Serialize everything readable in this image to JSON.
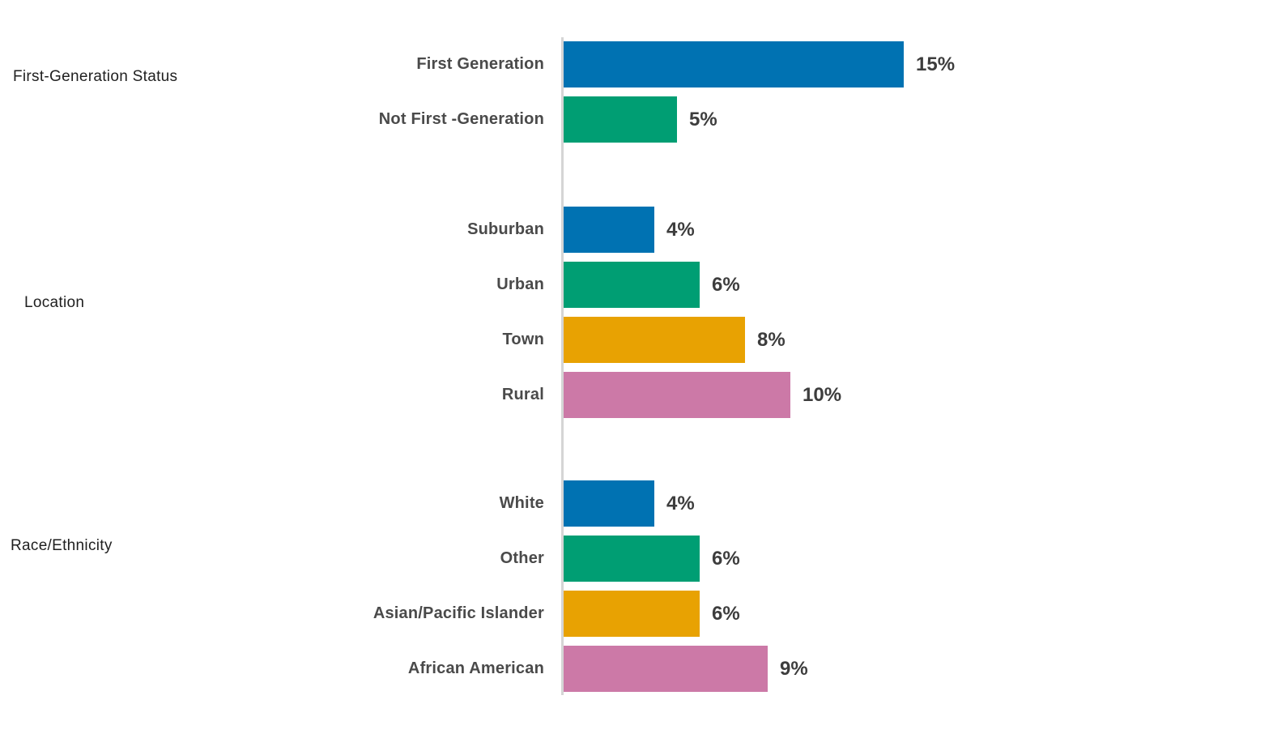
{
  "chart_data": {
    "type": "bar",
    "orientation": "horizontal",
    "unit": "%",
    "xlim": [
      0,
      31
    ],
    "grid": false,
    "legend": false,
    "axis_color": "#d5d5d5",
    "groups": [
      {
        "label": "First-Generation Status",
        "bars": [
          {
            "label": "First Generation",
            "value": 15,
            "value_label": "15%",
            "color": "#0072B2"
          },
          {
            "label": "Not First -Generation",
            "value": 5,
            "value_label": "5%",
            "color": "#009E73"
          }
        ]
      },
      {
        "label": "Location",
        "bars": [
          {
            "label": "Suburban",
            "value": 4,
            "value_label": "4%",
            "color": "#0072B2"
          },
          {
            "label": "Urban",
            "value": 6,
            "value_label": "6%",
            "color": "#009E73"
          },
          {
            "label": "Town",
            "value": 8,
            "value_label": "8%",
            "color": "#E8A202"
          },
          {
            "label": "Rural",
            "value": 10,
            "value_label": "10%",
            "color": "#CC79A7"
          }
        ]
      },
      {
        "label": "Race/Ethnicity",
        "bars": [
          {
            "label": "White",
            "value": 4,
            "value_label": "4%",
            "color": "#0072B2"
          },
          {
            "label": "Other",
            "value": 6,
            "value_label": "6%",
            "color": "#009E73"
          },
          {
            "label": "Asian/Pacific Islander",
            "value": 6,
            "value_label": "6%",
            "color": "#E8A202"
          },
          {
            "label": "African American",
            "value": 9,
            "value_label": "9%",
            "color": "#CC79A7"
          }
        ]
      }
    ]
  }
}
